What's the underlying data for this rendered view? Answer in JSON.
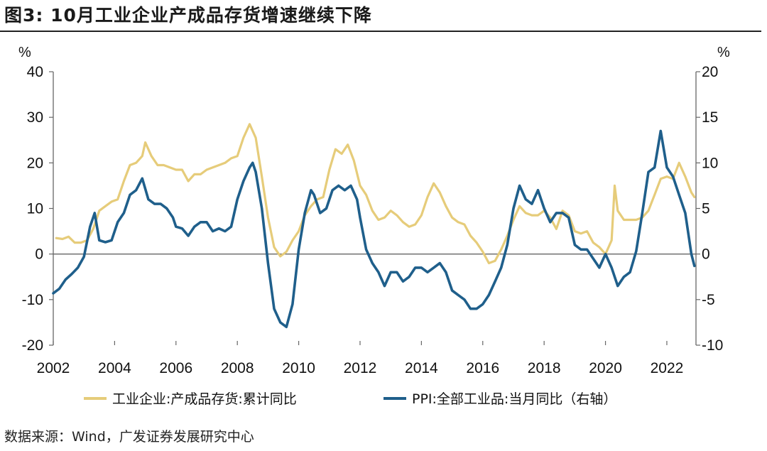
{
  "title": "图3:  10月工业企业产成品存货增速继续下降",
  "source": "数据来源：Wind，广发证券发展研究中心",
  "chart_data": {
    "type": "line",
    "x_ticks": [
      "2002",
      "2004",
      "2006",
      "2008",
      "2010",
      "2012",
      "2014",
      "2016",
      "2018",
      "2020",
      "2022"
    ],
    "xlim": [
      2002.0,
      2022.95
    ],
    "y_left": {
      "unit": "%",
      "ylim": [
        -20,
        40
      ],
      "ticks": [
        "40",
        "30",
        "20",
        "10",
        "0",
        "-10",
        "-20"
      ]
    },
    "y_right": {
      "unit": "%",
      "ylim": [
        -10,
        20
      ],
      "ticks": [
        "20",
        "15",
        "10",
        "5",
        "0",
        "-5",
        "-10"
      ]
    },
    "series": [
      {
        "name": "工业企业:产成品存货:累计同比",
        "axis": "left",
        "color": "#e6cc7a",
        "points": [
          [
            2002.1,
            3.5
          ],
          [
            2002.3,
            3.3
          ],
          [
            2002.5,
            3.8
          ],
          [
            2002.7,
            2.5
          ],
          [
            2002.9,
            2.5
          ],
          [
            2003.1,
            3.0
          ],
          [
            2003.3,
            5.5
          ],
          [
            2003.5,
            9.5
          ],
          [
            2003.7,
            10.5
          ],
          [
            2003.9,
            11.5
          ],
          [
            2004.1,
            12.0
          ],
          [
            2004.3,
            16.0
          ],
          [
            2004.5,
            19.5
          ],
          [
            2004.7,
            20.0
          ],
          [
            2004.9,
            21.5
          ],
          [
            2005.0,
            24.5
          ],
          [
            2005.2,
            21.5
          ],
          [
            2005.4,
            19.5
          ],
          [
            2005.6,
            19.5
          ],
          [
            2005.8,
            19.0
          ],
          [
            2006.0,
            18.5
          ],
          [
            2006.2,
            18.5
          ],
          [
            2006.4,
            16.0
          ],
          [
            2006.6,
            17.5
          ],
          [
            2006.8,
            17.5
          ],
          [
            2007.0,
            18.5
          ],
          [
            2007.2,
            19.0
          ],
          [
            2007.4,
            19.5
          ],
          [
            2007.6,
            20.0
          ],
          [
            2007.8,
            21.0
          ],
          [
            2008.0,
            21.5
          ],
          [
            2008.2,
            25.5
          ],
          [
            2008.4,
            28.5
          ],
          [
            2008.6,
            25.5
          ],
          [
            2008.8,
            17.0
          ],
          [
            2009.0,
            8.0
          ],
          [
            2009.2,
            1.5
          ],
          [
            2009.4,
            -0.5
          ],
          [
            2009.6,
            0.5
          ],
          [
            2009.8,
            3.0
          ],
          [
            2010.0,
            5.0
          ],
          [
            2010.2,
            8.5
          ],
          [
            2010.4,
            10.5
          ],
          [
            2010.6,
            12.0
          ],
          [
            2010.8,
            12.5
          ],
          [
            2011.0,
            18.5
          ],
          [
            2011.2,
            23.0
          ],
          [
            2011.4,
            22.0
          ],
          [
            2011.6,
            24.0
          ],
          [
            2011.8,
            20.5
          ],
          [
            2012.0,
            15.0
          ],
          [
            2012.2,
            13.0
          ],
          [
            2012.4,
            9.5
          ],
          [
            2012.6,
            7.5
          ],
          [
            2012.8,
            8.0
          ],
          [
            2013.0,
            9.5
          ],
          [
            2013.2,
            8.5
          ],
          [
            2013.4,
            7.0
          ],
          [
            2013.6,
            6.0
          ],
          [
            2013.8,
            6.5
          ],
          [
            2014.0,
            8.5
          ],
          [
            2014.2,
            12.5
          ],
          [
            2014.4,
            15.5
          ],
          [
            2014.6,
            13.5
          ],
          [
            2014.8,
            10.5
          ],
          [
            2015.0,
            8.0
          ],
          [
            2015.2,
            7.0
          ],
          [
            2015.4,
            6.5
          ],
          [
            2015.6,
            4.0
          ],
          [
            2015.8,
            2.5
          ],
          [
            2016.0,
            0.5
          ],
          [
            2016.2,
            -2.0
          ],
          [
            2016.4,
            -1.5
          ],
          [
            2016.6,
            1.0
          ],
          [
            2016.8,
            4.0
          ],
          [
            2017.0,
            7.5
          ],
          [
            2017.2,
            10.5
          ],
          [
            2017.4,
            9.0
          ],
          [
            2017.6,
            8.5
          ],
          [
            2017.8,
            8.5
          ],
          [
            2018.0,
            9.5
          ],
          [
            2018.2,
            8.0
          ],
          [
            2018.4,
            5.5
          ],
          [
            2018.6,
            9.5
          ],
          [
            2018.8,
            8.5
          ],
          [
            2019.0,
            5.0
          ],
          [
            2019.2,
            4.5
          ],
          [
            2019.4,
            5.0
          ],
          [
            2019.6,
            2.5
          ],
          [
            2019.8,
            1.5
          ],
          [
            2020.0,
            0.0
          ],
          [
            2020.2,
            3.0
          ],
          [
            2020.3,
            15.0
          ],
          [
            2020.4,
            9.5
          ],
          [
            2020.6,
            7.5
          ],
          [
            2020.8,
            7.5
          ],
          [
            2021.0,
            7.5
          ],
          [
            2021.2,
            8.0
          ],
          [
            2021.4,
            9.5
          ],
          [
            2021.6,
            13.0
          ],
          [
            2021.8,
            16.5
          ],
          [
            2022.0,
            17.0
          ],
          [
            2022.2,
            16.5
          ],
          [
            2022.4,
            20.0
          ],
          [
            2022.6,
            17.0
          ],
          [
            2022.8,
            13.5
          ],
          [
            2022.9,
            12.5
          ]
        ]
      },
      {
        "name": "PPI:全部工业品:当月同比（右轴）",
        "axis": "right",
        "color": "#1f5f8b",
        "points": [
          [
            2002.0,
            -4.3
          ],
          [
            2002.2,
            -3.8
          ],
          [
            2002.4,
            -2.8
          ],
          [
            2002.6,
            -2.2
          ],
          [
            2002.8,
            -1.5
          ],
          [
            2003.0,
            -0.3
          ],
          [
            2003.2,
            3.0
          ],
          [
            2003.35,
            4.5
          ],
          [
            2003.5,
            1.5
          ],
          [
            2003.7,
            1.3
          ],
          [
            2003.9,
            1.5
          ],
          [
            2004.1,
            3.5
          ],
          [
            2004.3,
            4.5
          ],
          [
            2004.5,
            6.5
          ],
          [
            2004.7,
            7.0
          ],
          [
            2004.9,
            8.3
          ],
          [
            2005.1,
            6.0
          ],
          [
            2005.3,
            5.5
          ],
          [
            2005.5,
            5.5
          ],
          [
            2005.7,
            5.0
          ],
          [
            2005.9,
            4.0
          ],
          [
            2006.0,
            3.0
          ],
          [
            2006.2,
            2.8
          ],
          [
            2006.4,
            2.0
          ],
          [
            2006.6,
            3.0
          ],
          [
            2006.8,
            3.5
          ],
          [
            2007.0,
            3.5
          ],
          [
            2007.2,
            2.5
          ],
          [
            2007.4,
            2.8
          ],
          [
            2007.6,
            2.5
          ],
          [
            2007.8,
            3.0
          ],
          [
            2008.0,
            6.0
          ],
          [
            2008.2,
            8.0
          ],
          [
            2008.4,
            9.5
          ],
          [
            2008.5,
            10.0
          ],
          [
            2008.6,
            9.0
          ],
          [
            2008.8,
            5.0
          ],
          [
            2009.0,
            -1.0
          ],
          [
            2009.2,
            -6.0
          ],
          [
            2009.4,
            -7.5
          ],
          [
            2009.6,
            -8.0
          ],
          [
            2009.8,
            -5.5
          ],
          [
            2010.0,
            0.5
          ],
          [
            2010.2,
            4.5
          ],
          [
            2010.4,
            7.0
          ],
          [
            2010.5,
            6.5
          ],
          [
            2010.7,
            4.5
          ],
          [
            2010.9,
            5.0
          ],
          [
            2011.1,
            7.0
          ],
          [
            2011.3,
            7.5
          ],
          [
            2011.5,
            7.0
          ],
          [
            2011.7,
            7.5
          ],
          [
            2011.9,
            6.0
          ],
          [
            2012.0,
            4.0
          ],
          [
            2012.2,
            0.5
          ],
          [
            2012.4,
            -1.0
          ],
          [
            2012.6,
            -2.0
          ],
          [
            2012.8,
            -3.5
          ],
          [
            2013.0,
            -2.0
          ],
          [
            2013.2,
            -2.0
          ],
          [
            2013.4,
            -3.0
          ],
          [
            2013.6,
            -2.5
          ],
          [
            2013.8,
            -1.5
          ],
          [
            2014.0,
            -1.5
          ],
          [
            2014.2,
            -2.0
          ],
          [
            2014.4,
            -1.5
          ],
          [
            2014.6,
            -1.0
          ],
          [
            2014.8,
            -2.0
          ],
          [
            2015.0,
            -4.0
          ],
          [
            2015.2,
            -4.5
          ],
          [
            2015.4,
            -5.0
          ],
          [
            2015.6,
            -6.0
          ],
          [
            2015.8,
            -6.0
          ],
          [
            2016.0,
            -5.5
          ],
          [
            2016.2,
            -4.5
          ],
          [
            2016.4,
            -3.0
          ],
          [
            2016.6,
            -1.5
          ],
          [
            2016.8,
            1.0
          ],
          [
            2017.0,
            5.0
          ],
          [
            2017.2,
            7.5
          ],
          [
            2017.4,
            6.0
          ],
          [
            2017.6,
            5.5
          ],
          [
            2017.8,
            7.0
          ],
          [
            2018.0,
            5.0
          ],
          [
            2018.2,
            3.5
          ],
          [
            2018.4,
            4.5
          ],
          [
            2018.6,
            4.5
          ],
          [
            2018.8,
            4.0
          ],
          [
            2019.0,
            1.0
          ],
          [
            2019.2,
            0.5
          ],
          [
            2019.4,
            0.5
          ],
          [
            2019.6,
            -0.5
          ],
          [
            2019.8,
            -1.5
          ],
          [
            2020.0,
            0.0
          ],
          [
            2020.2,
            -1.5
          ],
          [
            2020.4,
            -3.5
          ],
          [
            2020.6,
            -2.5
          ],
          [
            2020.8,
            -2.0
          ],
          [
            2021.0,
            0.3
          ],
          [
            2021.2,
            4.5
          ],
          [
            2021.4,
            9.0
          ],
          [
            2021.6,
            9.5
          ],
          [
            2021.8,
            13.5
          ],
          [
            2022.0,
            9.5
          ],
          [
            2022.2,
            8.5
          ],
          [
            2022.4,
            6.5
          ],
          [
            2022.6,
            4.5
          ],
          [
            2022.8,
            0.0
          ],
          [
            2022.9,
            -1.3
          ]
        ]
      }
    ]
  }
}
